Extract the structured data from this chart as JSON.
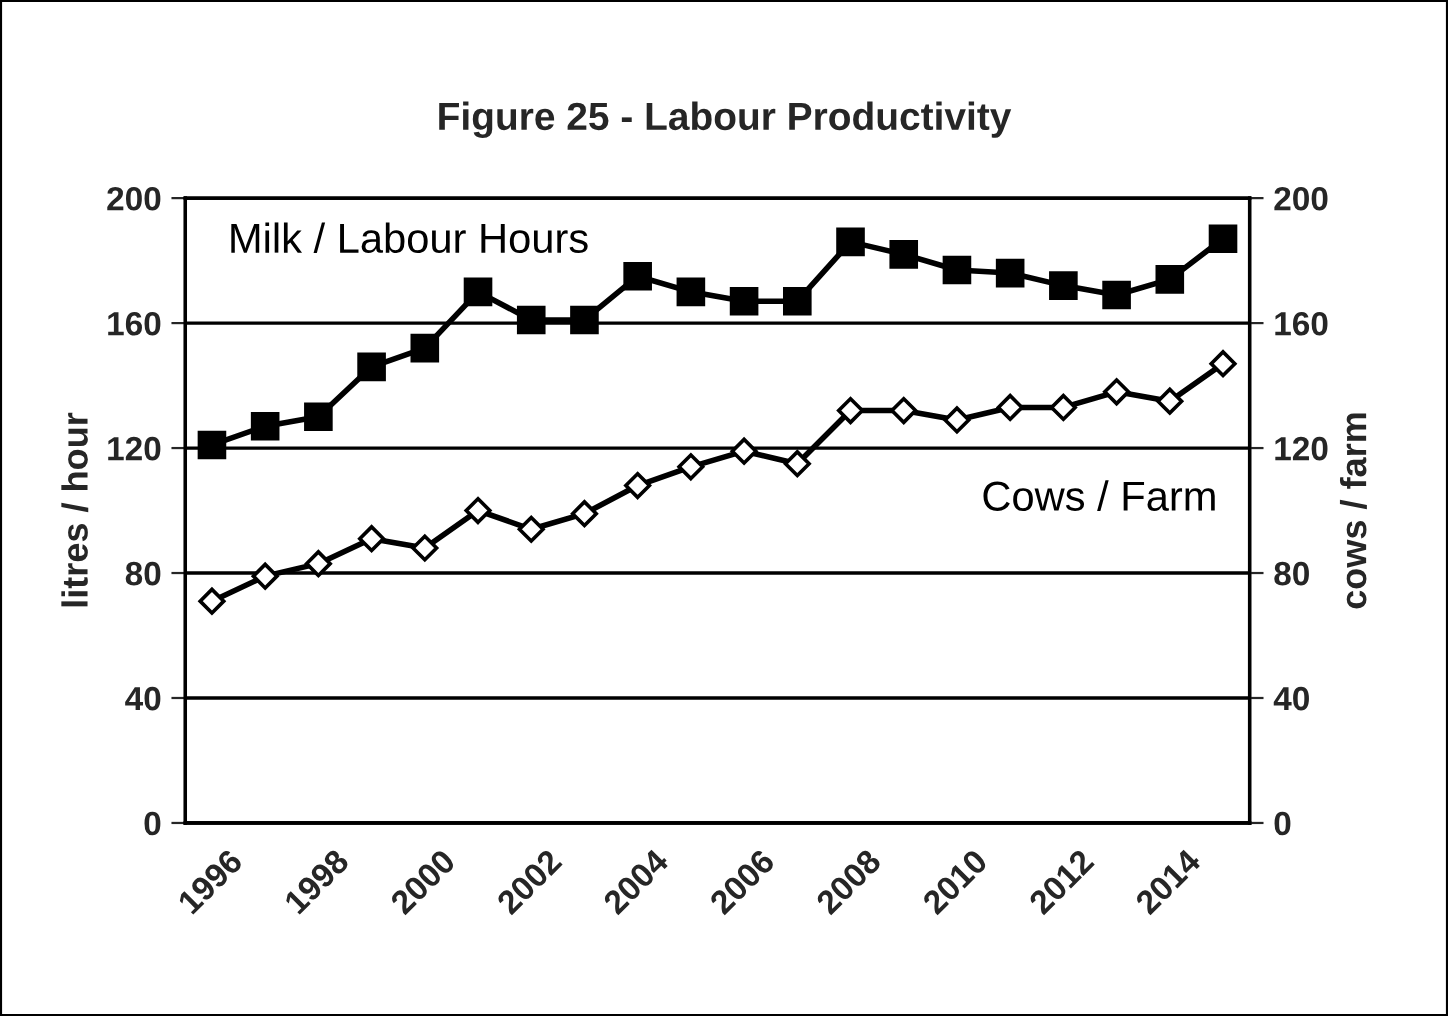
{
  "chart_data": {
    "type": "line",
    "title": "Figure 25 - Labour Productivity",
    "ylabel": "litres / hour",
    "y2label": "cows / farm",
    "categories": [
      "1996",
      null,
      "1998",
      null,
      "2000",
      null,
      "2002",
      null,
      "2004",
      null,
      "2006",
      null,
      "2008",
      null,
      "2010",
      null,
      "2012",
      null,
      "2014",
      null
    ],
    "series": [
      {
        "name": "Milk / Labour Hours",
        "color": "#000000",
        "marker": "square",
        "values": [
          121,
          127,
          130,
          146,
          152,
          170,
          161,
          161,
          175,
          170,
          167,
          167,
          186,
          182,
          177,
          176,
          172,
          169,
          174,
          187
        ]
      },
      {
        "name": "Cows / Farm",
        "color": "#000000",
        "marker": "diamond",
        "axis": "y2",
        "values": [
          71,
          79,
          83,
          91,
          88,
          100,
          94,
          99,
          108,
          114,
          119,
          115,
          132,
          132,
          129,
          133,
          133,
          138,
          135,
          147
        ]
      }
    ],
    "ylim": [
      0,
      200
    ],
    "yticks": [
      0,
      40,
      80,
      120,
      160,
      200
    ],
    "y2lim": [
      0,
      200
    ],
    "y2ticks": [
      0,
      40,
      80,
      120,
      160,
      200
    ],
    "grid": "y",
    "legend": false,
    "line_style": "solid"
  }
}
